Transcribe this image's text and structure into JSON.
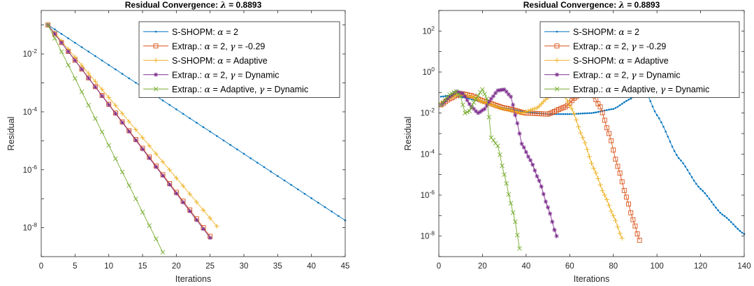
{
  "chart_data": [
    {
      "type": "line",
      "title_prefix": "Residual Convergence: ",
      "title_symbol": "λ",
      "title_value": " = 0.8893",
      "xlabel": "Iterations",
      "ylabel": "Residual",
      "xlim": [
        0,
        45
      ],
      "ylim_log10": [
        -9,
        -0.5
      ],
      "yscale": "log",
      "xticks": [
        "0",
        "5",
        "10",
        "15",
        "20",
        "25",
        "30",
        "35",
        "40",
        "45"
      ],
      "xtick_values": [
        0,
        5,
        10,
        15,
        20,
        25,
        30,
        35,
        40,
        45
      ],
      "yticks": [
        "-8",
        "-6",
        "-4",
        "-2"
      ],
      "ytick_values": [
        -8,
        -6,
        -4,
        -2
      ],
      "ytick_base": "10",
      "legend_position": "top-right",
      "series": [
        {
          "key": "s1",
          "name_parts": [
            "S-SHOPM: ",
            "α",
            " = 2"
          ],
          "color": "#0072BD",
          "marker": "dot",
          "model": {
            "type": "linear",
            "x0": 1,
            "x1": 45,
            "step": 1,
            "y0": -1.0,
            "y1": -7.75
          }
        },
        {
          "key": "s2",
          "name_parts": [
            "Extrap.: ",
            "α",
            " = 2, ",
            "γ",
            " = -0.29"
          ],
          "color": "#D95319",
          "marker": "square",
          "model": {
            "type": "linear",
            "x0": 1,
            "x1": 25,
            "step": 1,
            "y0": -1.0,
            "y1": -8.3
          }
        },
        {
          "key": "s3",
          "name_parts": [
            "S-SHOPM: ",
            "α",
            " = Adaptive"
          ],
          "color": "#EDB120",
          "marker": "plus",
          "model": {
            "type": "linear",
            "x0": 1,
            "x1": 26,
            "step": 1,
            "y0": -1.0,
            "y1": -7.95
          }
        },
        {
          "key": "s4",
          "name_parts": [
            "Extrap.: ",
            "α",
            " = 2, ",
            "γ",
            " = Dynamic"
          ],
          "color": "#7E2F8E",
          "marker": "star",
          "model": {
            "type": "linear",
            "x0": 1,
            "x1": 25,
            "step": 1,
            "y0": -1.0,
            "y1": -8.35
          }
        },
        {
          "key": "s5",
          "name_parts": [
            "Extrap.: ",
            "α",
            " = Adaptive, ",
            "γ",
            " = Dynamic"
          ],
          "color": "#77AC30",
          "marker": "x",
          "model": {
            "type": "linear",
            "x0": 1,
            "x1": 18,
            "step": 1,
            "y0": -1.0,
            "y1": -8.85
          }
        }
      ]
    },
    {
      "type": "line",
      "title_prefix": "Residual Convergence: ",
      "title_symbol": "λ",
      "title_value": " = 0.8893",
      "xlabel": "Iterations",
      "ylabel": "Residual",
      "xlim": [
        0,
        140
      ],
      "ylim_log10": [
        -9,
        3
      ],
      "yscale": "log",
      "xticks": [
        "0",
        "20",
        "40",
        "60",
        "80",
        "100",
        "120",
        "140"
      ],
      "xtick_values": [
        0,
        20,
        40,
        60,
        80,
        100,
        120,
        140
      ],
      "yticks": [
        "-8",
        "-6",
        "-4",
        "-2",
        "0",
        "2"
      ],
      "ytick_values": [
        -8,
        -6,
        -4,
        -2,
        0,
        2
      ],
      "ytick_base": "10",
      "legend_position": "top-right",
      "series": [
        {
          "key": "s1",
          "name_parts": [
            "S-SHOPM: ",
            "α",
            " = 2"
          ],
          "color": "#0072BD",
          "marker": "dot",
          "model": {
            "type": "keys",
            "x0": 1,
            "x1": 140,
            "step": 1,
            "keys": [
              [
                1,
                -1.2
              ],
              [
                5,
                -1.15
              ],
              [
                10,
                -1.2
              ],
              [
                20,
                -1.45
              ],
              [
                30,
                -1.75
              ],
              [
                40,
                -1.95
              ],
              [
                50,
                -2.05
              ],
              [
                60,
                -2.05
              ],
              [
                70,
                -2.0
              ],
              [
                80,
                -1.8
              ],
              [
                88,
                -1.3
              ],
              [
                92,
                -0.95
              ],
              [
                95,
                -1.0
              ],
              [
                100,
                -2.1
              ],
              [
                110,
                -4.2
              ],
              [
                120,
                -5.7
              ],
              [
                130,
                -6.95
              ],
              [
                140,
                -7.9
              ]
            ]
          }
        },
        {
          "key": "s2",
          "name_parts": [
            "Extrap.: ",
            "α",
            " = 2, ",
            "γ",
            " = -0.29"
          ],
          "color": "#D95319",
          "marker": "square",
          "model": {
            "type": "keys",
            "x0": 1,
            "x1": 92,
            "step": 1,
            "keys": [
              [
                1,
                -1.6
              ],
              [
                5,
                -1.3
              ],
              [
                10,
                -1.05
              ],
              [
                15,
                -1.15
              ],
              [
                20,
                -1.4
              ],
              [
                30,
                -1.75
              ],
              [
                40,
                -2.0
              ],
              [
                50,
                -2.05
              ],
              [
                58,
                -1.7
              ],
              [
                63,
                -1.2
              ],
              [
                67,
                -0.95
              ],
              [
                70,
                -1.0
              ],
              [
                74,
                -1.7
              ],
              [
                78,
                -3.0
              ],
              [
                82,
                -4.6
              ],
              [
                86,
                -6.1
              ],
              [
                89,
                -7.2
              ],
              [
                92,
                -8.2
              ]
            ]
          }
        },
        {
          "key": "s3",
          "name_parts": [
            "S-SHOPM: ",
            "α",
            " = Adaptive"
          ],
          "color": "#EDB120",
          "marker": "plus",
          "model": {
            "type": "keys",
            "x0": 1,
            "x1": 84,
            "step": 1,
            "keys": [
              [
                1,
                -1.5
              ],
              [
                5,
                -1.25
              ],
              [
                10,
                -1.05
              ],
              [
                15,
                -1.2
              ],
              [
                20,
                -1.45
              ],
              [
                30,
                -1.8
              ],
              [
                38,
                -2.0
              ],
              [
                45,
                -1.75
              ],
              [
                50,
                -1.25
              ],
              [
                54,
                -0.95
              ],
              [
                57,
                -1.05
              ],
              [
                61,
                -1.8
              ],
              [
                66,
                -3.2
              ],
              [
                71,
                -4.7
              ],
              [
                76,
                -6.0
              ],
              [
                80,
                -7.0
              ],
              [
                84,
                -8.1
              ]
            ]
          }
        },
        {
          "key": "s4",
          "name_parts": [
            "Extrap.: ",
            "α",
            " = 2, ",
            "γ",
            " = Dynamic"
          ],
          "color": "#7E2F8E",
          "marker": "star",
          "model": {
            "type": "keys",
            "x0": 1,
            "x1": 54,
            "step": 1,
            "keys": [
              [
                1,
                -1.6
              ],
              [
                5,
                -1.2
              ],
              [
                8,
                -0.95
              ],
              [
                11,
                -1.05
              ],
              [
                15,
                -1.7
              ],
              [
                18,
                -2.0
              ],
              [
                21,
                -1.8
              ],
              [
                24,
                -1.3
              ],
              [
                27,
                -0.9
              ],
              [
                30,
                -0.85
              ],
              [
                33,
                -1.2
              ],
              [
                36,
                -2.5
              ],
              [
                38,
                -3.5
              ],
              [
                42,
                -4.3
              ],
              [
                46,
                -5.3
              ],
              [
                50,
                -6.6
              ],
              [
                54,
                -8.0
              ]
            ]
          }
        },
        {
          "key": "s5",
          "name_parts": [
            "Extrap.: ",
            "α",
            " = Adaptive, ",
            "γ",
            " = Dynamic"
          ],
          "color": "#77AC30",
          "marker": "x",
          "model": {
            "type": "keys",
            "x0": 1,
            "x1": 37,
            "step": 1,
            "keys": [
              [
                1,
                -1.6
              ],
              [
                5,
                -1.1
              ],
              [
                8,
                -0.95
              ],
              [
                10,
                -1.2
              ],
              [
                12,
                -2.0
              ],
              [
                14,
                -1.9
              ],
              [
                17,
                -1.3
              ],
              [
                20,
                -0.85
              ],
              [
                22,
                -1.3
              ],
              [
                23,
                -2.2
              ],
              [
                24,
                -3.2
              ],
              [
                27,
                -3.6
              ],
              [
                30,
                -5.0
              ],
              [
                33,
                -6.4
              ],
              [
                35,
                -7.3
              ],
              [
                37,
                -8.6
              ]
            ]
          }
        }
      ]
    }
  ]
}
